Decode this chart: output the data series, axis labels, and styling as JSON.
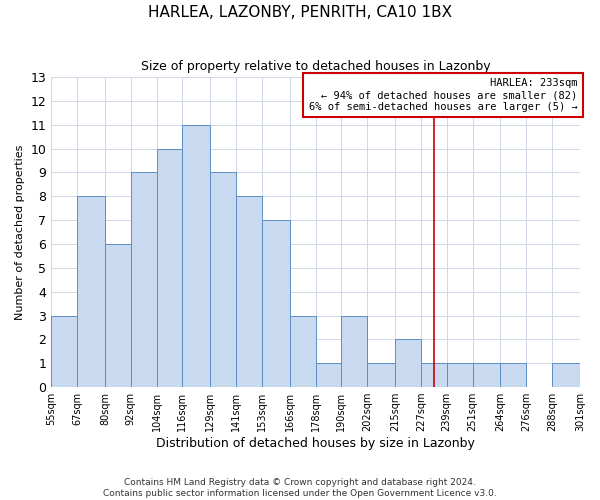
{
  "title": "HARLEA, LAZONBY, PENRITH, CA10 1BX",
  "subtitle": "Size of property relative to detached houses in Lazonby",
  "xlabel": "Distribution of detached houses by size in Lazonby",
  "ylabel": "Number of detached properties",
  "bin_edges": [
    55,
    67,
    80,
    92,
    104,
    116,
    129,
    141,
    153,
    166,
    178,
    190,
    202,
    215,
    227,
    239,
    251,
    264,
    276,
    288,
    301
  ],
  "bar_heights": [
    3,
    8,
    6,
    9,
    10,
    11,
    9,
    8,
    7,
    3,
    1,
    3,
    1,
    2,
    1,
    1,
    1,
    1,
    0,
    1
  ],
  "bar_color": "#c9d9f0",
  "bar_edge_color": "#5b8ec4",
  "ylim": [
    0,
    13
  ],
  "yticks": [
    0,
    1,
    2,
    3,
    4,
    5,
    6,
    7,
    8,
    9,
    10,
    11,
    12,
    13
  ],
  "vline_x": 233,
  "vline_color": "#cc0000",
  "annotation_title": "HARLEA: 233sqm",
  "annotation_line1": "← 94% of detached houses are smaller (82)",
  "annotation_line2": "6% of semi-detached houses are larger (5) →",
  "annotation_box_color": "#ffffff",
  "annotation_border_color": "#cc0000",
  "footnote1": "Contains HM Land Registry data © Crown copyright and database right 2024.",
  "footnote2": "Contains public sector information licensed under the Open Government Licence v3.0.",
  "background_color": "#ffffff",
  "grid_color": "#d0d8e8",
  "title_fontsize": 11,
  "subtitle_fontsize": 9,
  "tick_label_fontsize": 7,
  "ylabel_fontsize": 8,
  "xlabel_fontsize": 9,
  "footnote_fontsize": 6.5
}
